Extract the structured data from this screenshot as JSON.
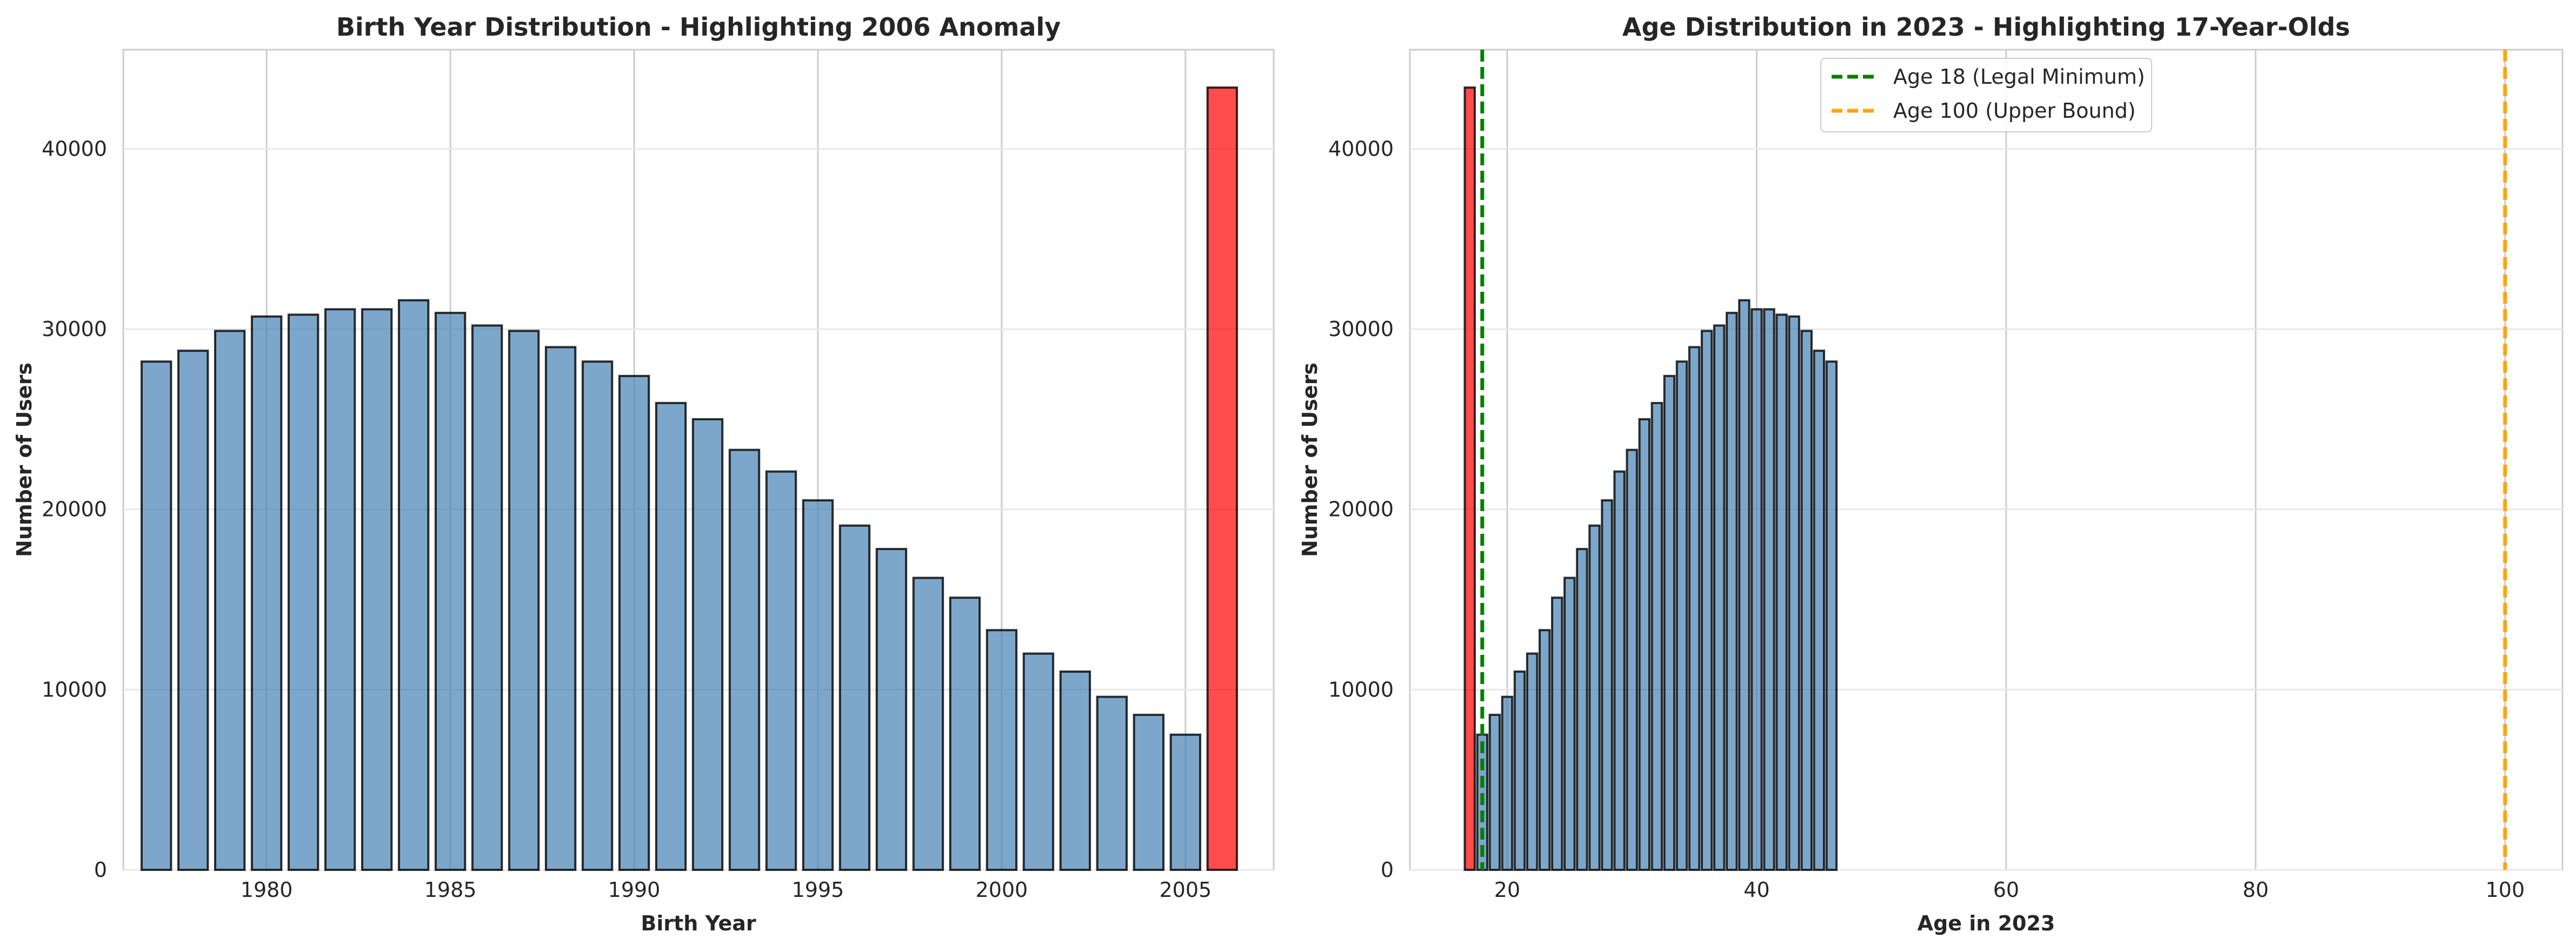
{
  "chart_data": [
    {
      "type": "bar",
      "title": "Birth Year Distribution - Highlighting 2006 Anomaly",
      "xlabel": "Birth Year",
      "ylabel": "Number of Users",
      "xlim": [
        1976.1,
        2007.4
      ],
      "ylim": [
        0,
        45500
      ],
      "grid": true,
      "legend": false,
      "x_ticks": [
        1980,
        1985,
        1990,
        1995,
        2000,
        2005
      ],
      "y_ticks": [
        0,
        10000,
        20000,
        30000,
        40000
      ],
      "colors": {
        "bar": "#4682b4",
        "highlight": "#ff0000",
        "edge": "#000000"
      },
      "highlight_category": 2006,
      "categories": [
        1977,
        1978,
        1979,
        1980,
        1981,
        1982,
        1983,
        1984,
        1985,
        1986,
        1987,
        1988,
        1989,
        1990,
        1991,
        1992,
        1993,
        1994,
        1995,
        1996,
        1997,
        1998,
        1999,
        2000,
        2001,
        2002,
        2003,
        2004,
        2005,
        2006
      ],
      "values": [
        28200,
        28800,
        29900,
        30700,
        30800,
        31100,
        31100,
        31600,
        30900,
        30200,
        29900,
        29000,
        28200,
        27400,
        25900,
        25000,
        23300,
        22100,
        20500,
        19100,
        17800,
        16200,
        15100,
        13300,
        12000,
        11000,
        9600,
        8600,
        7500,
        43400
      ]
    },
    {
      "type": "bar",
      "title": "Age Distribution in 2023 - Highlighting 17-Year-Olds",
      "xlabel": "Age in 2023",
      "ylabel": "Number of Users",
      "xlim": [
        12.2,
        104.6
      ],
      "ylim": [
        0,
        45500
      ],
      "grid": true,
      "legend": "upper center",
      "x_ticks": [
        20,
        40,
        60,
        80,
        100
      ],
      "y_ticks": [
        0,
        10000,
        20000,
        30000,
        40000
      ],
      "colors": {
        "bar": "#4682b4",
        "highlight": "#ff0000",
        "edge": "#000000"
      },
      "highlight_category": 17,
      "categories": [
        17,
        18,
        19,
        20,
        21,
        22,
        23,
        24,
        25,
        26,
        27,
        28,
        29,
        30,
        31,
        32,
        33,
        34,
        35,
        36,
        37,
        38,
        39,
        40,
        41,
        42,
        43,
        44,
        45,
        46
      ],
      "values": [
        43400,
        7500,
        8600,
        9600,
        11000,
        12000,
        13300,
        15100,
        16200,
        17800,
        19100,
        20500,
        22100,
        23300,
        25000,
        25900,
        27400,
        28200,
        29000,
        29900,
        30200,
        30900,
        31600,
        31100,
        31100,
        30800,
        30700,
        29900,
        28800,
        28200
      ],
      "reference_lines": [
        {
          "x": 18,
          "label": "Age 18 (Legal Minimum)",
          "color": "#008000"
        },
        {
          "x": 100,
          "label": "Age 100 (Upper Bound)",
          "color": "#ffa500"
        }
      ]
    }
  ]
}
